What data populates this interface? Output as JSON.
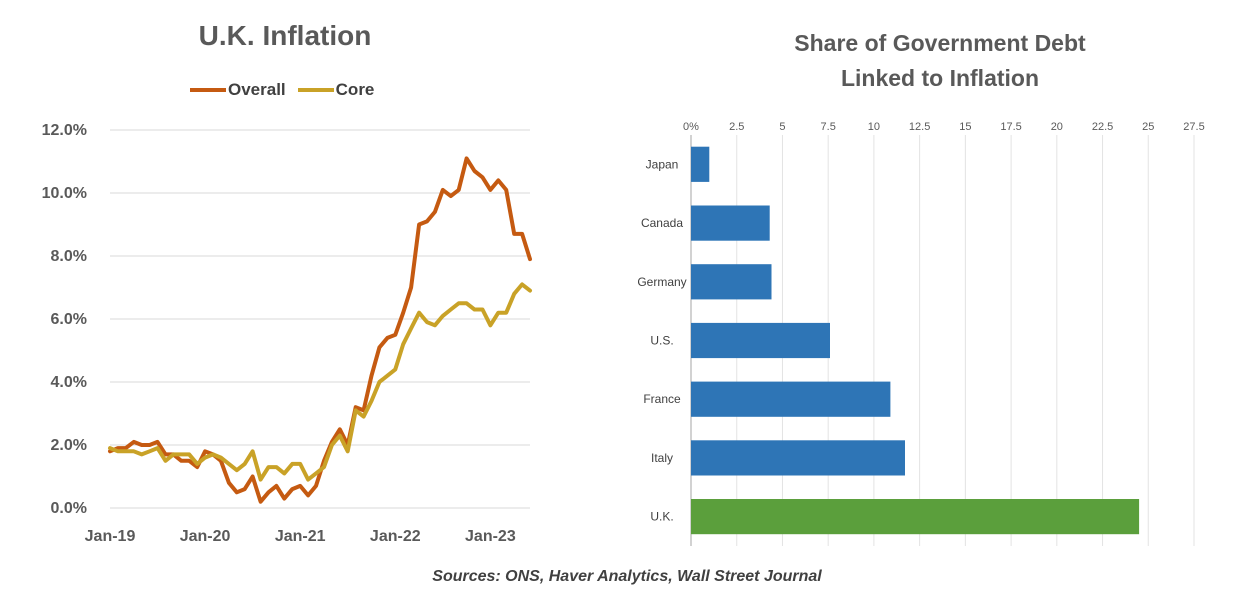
{
  "chart_data": [
    {
      "type": "line",
      "title": "U.K. Inflation",
      "xlabel": "",
      "ylabel": "",
      "ylim": [
        0,
        12
      ],
      "y_ticks": [
        "0.0%",
        "2.0%",
        "4.0%",
        "6.0%",
        "8.0%",
        "10.0%",
        "12.0%"
      ],
      "x_tick_labels": [
        "Jan-19",
        "Jan-20",
        "Jan-21",
        "Jan-22",
        "Jan-23"
      ],
      "x_start": "Jan-19",
      "frequency": "monthly",
      "grid": true,
      "legend_position": "top",
      "series": [
        {
          "name": "Overall",
          "color": "#C55A11",
          "values": [
            1.8,
            1.9,
            1.9,
            2.1,
            2.0,
            2.0,
            2.1,
            1.7,
            1.7,
            1.5,
            1.5,
            1.3,
            1.8,
            1.7,
            1.5,
            0.8,
            0.5,
            0.6,
            1.0,
            0.2,
            0.5,
            0.7,
            0.3,
            0.6,
            0.7,
            0.4,
            0.7,
            1.5,
            2.1,
            2.5,
            2.0,
            3.2,
            3.1,
            4.2,
            5.1,
            5.4,
            5.5,
            6.2,
            7.0,
            9.0,
            9.1,
            9.4,
            10.1,
            9.9,
            10.1,
            11.1,
            10.7,
            10.5,
            10.1,
            10.4,
            10.1,
            8.7,
            8.7,
            7.9
          ]
        },
        {
          "name": "Core",
          "color": "#C9A227",
          "values": [
            1.9,
            1.8,
            1.8,
            1.8,
            1.7,
            1.8,
            1.9,
            1.5,
            1.7,
            1.7,
            1.7,
            1.4,
            1.6,
            1.7,
            1.6,
            1.4,
            1.2,
            1.4,
            1.8,
            0.9,
            1.3,
            1.3,
            1.1,
            1.4,
            1.4,
            0.9,
            1.1,
            1.3,
            2.0,
            2.3,
            1.8,
            3.1,
            2.9,
            3.4,
            4.0,
            4.2,
            4.4,
            5.2,
            5.7,
            6.2,
            5.9,
            5.8,
            6.1,
            6.3,
            6.5,
            6.5,
            6.3,
            6.3,
            5.8,
            6.2,
            6.2,
            6.8,
            7.1,
            6.9
          ]
        }
      ]
    },
    {
      "type": "bar",
      "orientation": "horizontal",
      "title": "Share of Government Debt Linked to Inflation",
      "xlabel": "",
      "ylabel": "",
      "xlim": [
        0,
        27.5
      ],
      "x_ticks": [
        "0%",
        "2.5",
        "5",
        "7.5",
        "10",
        "12.5",
        "15",
        "17.5",
        "20",
        "22.5",
        "25",
        "27.5"
      ],
      "grid": true,
      "categories": [
        "Japan",
        "Canada",
        "Germany",
        "U.S.",
        "France",
        "Italy",
        "U.K."
      ],
      "values": [
        1.0,
        4.3,
        4.4,
        7.6,
        10.9,
        11.7,
        24.5
      ],
      "colors": [
        "#2E75B6",
        "#2E75B6",
        "#2E75B6",
        "#2E75B6",
        "#2E75B6",
        "#2E75B6",
        "#5B9F3C"
      ]
    }
  ],
  "titles": {
    "left": "U.K. Inflation",
    "right_line1": "Share of Government Debt",
    "right_line2": "Linked to Inflation"
  },
  "legend": {
    "overall": "Overall",
    "core": "Core"
  },
  "sources": "Sources: ONS, Haver Analytics, Wall Street Journal"
}
